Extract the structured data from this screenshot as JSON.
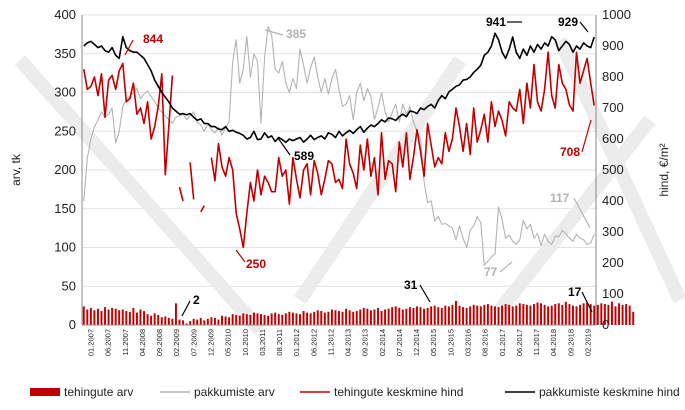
{
  "chart_data": {
    "type": "line",
    "y_left": {
      "label": "arv, tk",
      "ticks": [
        0,
        50,
        100,
        150,
        200,
        250,
        300,
        350,
        400
      ],
      "range": [
        0,
        400
      ]
    },
    "y_right": {
      "label": "hind, €/m²",
      "ticks": [
        0,
        100,
        200,
        300,
        400,
        500,
        600,
        700,
        800,
        900,
        1000
      ],
      "range": [
        0,
        1000
      ]
    },
    "x_ticks": [
      "01.2007",
      "06.2007",
      "11.2007",
      "04.2008",
      "09.2008",
      "02.2009",
      "07.2009",
      "12.2009",
      "05.2010",
      "10.2010",
      "03.2011",
      "08.2011",
      "01.2012",
      "06.2012",
      "11.2012",
      "04.2013",
      "09.2013",
      "02.2014",
      "07.2014",
      "12.2014",
      "05.2015",
      "10.2015",
      "03.2016",
      "08.2016",
      "01.2017",
      "06.2017",
      "11.2017",
      "04.2018",
      "09.2018",
      "02.2019"
    ],
    "grid": true,
    "legend_position": "bottom",
    "series": [
      {
        "name": "tehingute arv",
        "axis": "left",
        "kind": "bar",
        "color": "#c00000",
        "values": [
          24,
          20,
          22,
          19,
          21,
          18,
          23,
          20,
          22,
          21,
          19,
          20,
          18,
          17,
          22,
          16,
          20,
          18,
          14,
          12,
          15,
          13,
          10,
          11,
          9,
          8,
          28,
          7,
          6,
          2,
          5,
          8,
          7,
          9,
          6,
          8,
          10,
          9,
          7,
          12,
          11,
          10,
          14,
          13,
          12,
          15,
          14,
          13,
          16,
          15,
          14,
          13,
          12,
          15,
          16,
          14,
          13,
          15,
          17,
          16,
          15,
          14,
          18,
          16,
          15,
          17,
          19,
          18,
          16,
          17,
          20,
          19,
          18,
          17,
          21,
          19,
          17,
          18,
          20,
          22,
          21,
          19,
          20,
          22,
          18,
          20,
          21,
          23,
          24,
          22,
          20,
          21,
          23,
          22,
          24,
          23,
          21,
          22,
          24,
          25,
          23,
          22,
          25,
          24,
          26,
          31,
          25,
          23,
          22,
          24,
          26,
          25,
          24,
          26,
          27,
          25,
          24,
          23,
          25,
          27,
          26,
          24,
          25,
          28,
          27,
          26,
          25,
          27,
          29,
          28,
          26,
          24,
          25,
          27,
          28,
          26,
          30,
          27,
          25,
          24,
          26,
          28,
          29,
          27,
          25,
          26,
          28,
          27,
          26,
          30,
          24,
          28,
          26,
          27,
          25,
          17
        ]
      },
      {
        "name": "pakkumiste arv",
        "axis": "left",
        "color": "#b3b3b3",
        "x": [
          0,
          1,
          2,
          3,
          4,
          5,
          6,
          7,
          8,
          9,
          10,
          11,
          12,
          13,
          14,
          15,
          16,
          17,
          18,
          19,
          20,
          21,
          22,
          23,
          24,
          25,
          26,
          27,
          28,
          29,
          30,
          31,
          32,
          33,
          34,
          35,
          36,
          37,
          38,
          39,
          40,
          41,
          42,
          43,
          44,
          45,
          46,
          47,
          48,
          49,
          50,
          51,
          52,
          53,
          54,
          55,
          56,
          57,
          58,
          59,
          60,
          61,
          62,
          63,
          64,
          65,
          66,
          67,
          68,
          69,
          70,
          71,
          72,
          73,
          74,
          75,
          76,
          77,
          78,
          79,
          80,
          81,
          82,
          83,
          84,
          85,
          86,
          87,
          88,
          89,
          90,
          91,
          92,
          93,
          94,
          95,
          96,
          97,
          98,
          99,
          100,
          101,
          102,
          103,
          104,
          105,
          106,
          107,
          108,
          109,
          110,
          111,
          112,
          113,
          114,
          115,
          116,
          117,
          118,
          119,
          120,
          121,
          122,
          123,
          124,
          125,
          126,
          127,
          128,
          129,
          130,
          131,
          132,
          133,
          134,
          135,
          136,
          137,
          138,
          139,
          140,
          141,
          142,
          143,
          144
        ],
        "values": [
          160,
          215,
          240,
          255,
          265,
          275,
          268,
          272,
          280,
          235,
          250,
          282,
          290,
          295,
          300,
          305,
          292,
          298,
          302,
          295,
          288,
          280,
          275,
          270,
          265,
          260,
          268,
          270,
          272,
          265,
          270,
          275,
          262,
          258,
          250,
          260,
          252,
          248,
          255,
          245,
          255,
          262,
          340,
          368,
          312,
          330,
          372,
          320,
          350,
          340,
          260,
          345,
          385,
          374,
          330,
          325,
          340,
          312,
          300,
          318,
          305,
          356,
          335,
          312,
          332,
          346,
          320,
          300,
          318,
          298,
          318,
          330,
          304,
          282,
          285,
          296,
          265,
          300,
          312,
          289,
          305,
          295,
          265,
          280,
          300,
          275,
          262,
          274,
          285,
          262,
          285,
          272,
          282,
          262,
          250,
          240,
          185,
          158,
          160,
          134,
          140,
          130,
          131,
          128,
          125,
          110,
          128,
          112,
          100,
          122,
          128,
          140,
          132,
          77,
          82,
          88,
          92,
          152,
          136,
          112,
          116,
          108,
          104,
          110,
          135,
          124,
          130,
          112,
          118,
          102,
          117,
          108,
          104,
          115,
          114,
          122,
          118,
          112,
          108,
          117,
          112,
          110,
          104,
          106,
          117
        ]
      },
      {
        "name": "tehingute keskmine hind",
        "axis": "right",
        "color": "#c00000",
        "x": [
          0,
          1,
          2,
          3,
          4,
          5,
          6,
          7,
          8,
          9,
          10,
          11,
          12,
          13,
          14,
          15,
          16,
          17,
          18,
          19,
          20,
          21,
          22,
          23,
          24,
          25,
          26,
          27,
          28,
          29,
          30,
          31,
          32,
          33,
          34,
          35,
          36,
          37,
          38,
          39,
          40,
          41,
          42,
          43,
          44,
          45,
          46,
          47,
          48,
          49,
          50,
          51,
          52,
          53,
          54,
          55,
          56,
          57,
          58,
          59,
          60,
          61,
          62,
          63,
          64,
          65,
          66,
          67,
          68,
          69,
          70,
          71,
          72,
          73,
          74,
          75,
          76,
          77,
          78,
          79,
          80,
          81,
          82,
          83,
          84,
          85,
          86,
          87,
          88,
          89,
          90,
          91,
          92,
          93,
          94,
          95,
          96,
          97,
          98,
          99,
          100,
          101,
          102,
          103,
          104,
          105,
          106,
          107,
          108,
          109,
          110,
          111,
          112,
          113,
          114,
          115,
          116,
          117,
          118,
          119,
          120,
          121,
          122,
          123,
          124,
          125,
          126,
          127,
          128,
          129,
          130,
          131,
          132,
          133,
          134,
          135,
          136,
          137,
          138,
          139,
          140,
          141,
          142,
          143,
          144
        ],
        "values": [
          825,
          760,
          770,
          800,
          740,
          810,
          670,
          790,
          805,
          760,
          820,
          844,
          720,
          730,
          780,
          680,
          700,
          650,
          720,
          600,
          640,
          705,
          810,
          485,
          640,
          805,
          null,
          445,
          400,
          null,
          525,
          405,
          null,
          365,
          385,
          null,
          540,
          465,
          585,
          510,
          480,
          540,
          500,
          360,
          310,
          250,
          360,
          460,
          400,
          500,
          420,
          480,
          460,
          430,
          430,
          540,
          480,
          500,
          390,
          540,
          470,
          410,
          500,
          520,
          420,
          530,
          490,
          420,
          470,
          530,
          520,
          460,
          470,
          440,
          600,
          520,
          490,
          440,
          580,
          500,
          600,
          480,
          540,
          420,
          620,
          470,
          530,
          520,
          430,
          590,
          510,
          620,
          470,
          540,
          630,
          560,
          480,
          650,
          580,
          510,
          540,
          520,
          620,
          560,
          600,
          700,
          640,
          560,
          650,
          550,
          700,
          590,
          630,
          680,
          590,
          720,
          640,
          690,
          660,
          610,
          720,
          700,
          690,
          760,
          650,
          780,
          700,
          840,
          720,
          690,
          760,
          880,
          740,
          700,
          840,
          780,
          760,
          710,
          690,
          880,
          780,
          820,
          860,
          780,
          708
        ]
      },
      {
        "name": "pakkumiste keskmine hind",
        "axis": "right",
        "color": "#000000",
        "x": [
          0,
          1,
          2,
          3,
          4,
          5,
          6,
          7,
          8,
          9,
          10,
          11,
          12,
          13,
          14,
          15,
          16,
          17,
          18,
          19,
          20,
          21,
          22,
          23,
          24,
          25,
          26,
          27,
          28,
          29,
          30,
          31,
          32,
          33,
          34,
          35,
          36,
          37,
          38,
          39,
          40,
          41,
          42,
          43,
          44,
          45,
          46,
          47,
          48,
          49,
          50,
          51,
          52,
          53,
          54,
          55,
          56,
          57,
          58,
          59,
          60,
          61,
          62,
          63,
          64,
          65,
          66,
          67,
          68,
          69,
          70,
          71,
          72,
          73,
          74,
          75,
          76,
          77,
          78,
          79,
          80,
          81,
          82,
          83,
          84,
          85,
          86,
          87,
          88,
          89,
          90,
          91,
          92,
          93,
          94,
          95,
          96,
          97,
          98,
          99,
          100,
          101,
          102,
          103,
          104,
          105,
          106,
          107,
          108,
          109,
          110,
          111,
          112,
          113,
          114,
          115,
          116,
          117,
          118,
          119,
          120,
          121,
          122,
          123,
          124,
          125,
          126,
          127,
          128,
          129,
          130,
          131,
          132,
          133,
          134,
          135,
          136,
          137,
          138,
          139,
          140,
          141,
          142,
          143,
          144
        ],
        "values": [
          900,
          910,
          915,
          905,
          895,
          900,
          885,
          880,
          895,
          870,
          860,
          930,
          895,
          885,
          880,
          880,
          870,
          860,
          840,
          820,
          790,
          770,
          750,
          735,
          720,
          700,
          690,
          680,
          682,
          678,
          682,
          670,
          660,
          665,
          650,
          650,
          640,
          640,
          632,
          630,
          640,
          625,
          628,
          622,
          618,
          612,
          600,
          605,
          625,
          598,
          600,
          620,
          605,
          610,
          592,
          605,
          598,
          589,
          600,
          595,
          600,
          605,
          590,
          600,
          612,
          598,
          605,
          610,
          600,
          620,
          615,
          605,
          625,
          610,
          620,
          628,
          618,
          630,
          640,
          622,
          635,
          645,
          640,
          650,
          662,
          655,
          668,
          665,
          660,
          672,
          680,
          672,
          690,
          688,
          682,
          700,
          695,
          705,
          712,
          700,
          725,
          740,
          730,
          752,
          760,
          770,
          775,
          790,
          792,
          800,
          815,
          825,
          838,
          870,
          880,
          900,
          941,
          920,
          880,
          860,
          890,
          929,
          880,
          860,
          890,
          870,
          900,
          880,
          905,
          890,
          910,
          900,
          930,
          920,
          885,
          900,
          915,
          905,
          880,
          900,
          890,
          910,
          900,
          895,
          929
        ]
      }
    ],
    "annotations": [
      {
        "text": "844",
        "color": "#c00000"
      },
      {
        "text": "385",
        "color": "#b3b3b3"
      },
      {
        "text": "941",
        "color": "#000000"
      },
      {
        "text": "929",
        "color": "#000000"
      },
      {
        "text": "589",
        "color": "#000000"
      },
      {
        "text": "708",
        "color": "#c00000"
      },
      {
        "text": "250",
        "color": "#c00000"
      },
      {
        "text": "117",
        "color": "#b3b3b3"
      },
      {
        "text": "77",
        "color": "#b3b3b3"
      },
      {
        "text": "31",
        "color": "#000000"
      },
      {
        "text": "17",
        "color": "#000000"
      },
      {
        "text": "2",
        "color": "#000000"
      }
    ]
  }
}
